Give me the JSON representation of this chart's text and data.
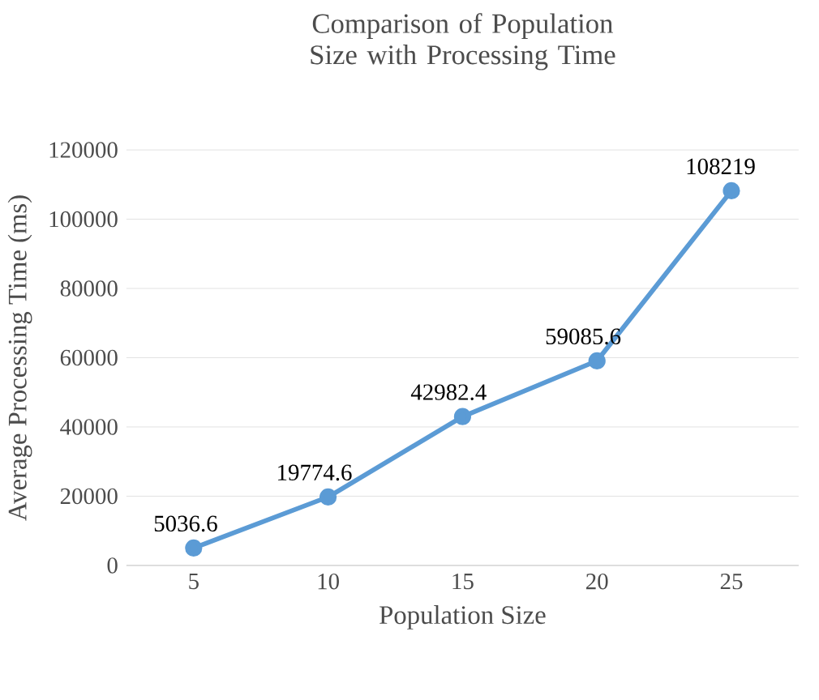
{
  "chart_data": {
    "type": "line",
    "title": "Comparison of Population Size with Processing Time",
    "xlabel": "Population Size",
    "ylabel": "Average Processing Time (ms)",
    "categories": [
      "5",
      "10",
      "15",
      "20",
      "25"
    ],
    "values": [
      5036.6,
      19774.6,
      42982.4,
      59085.6,
      108219
    ],
    "color": "#5b9bd5",
    "marker": "circle",
    "ylim": [
      0,
      120000
    ],
    "yticks": [
      0,
      20000,
      40000,
      60000,
      80000,
      100000,
      120000
    ],
    "grid": "y",
    "data_labels": true
  }
}
